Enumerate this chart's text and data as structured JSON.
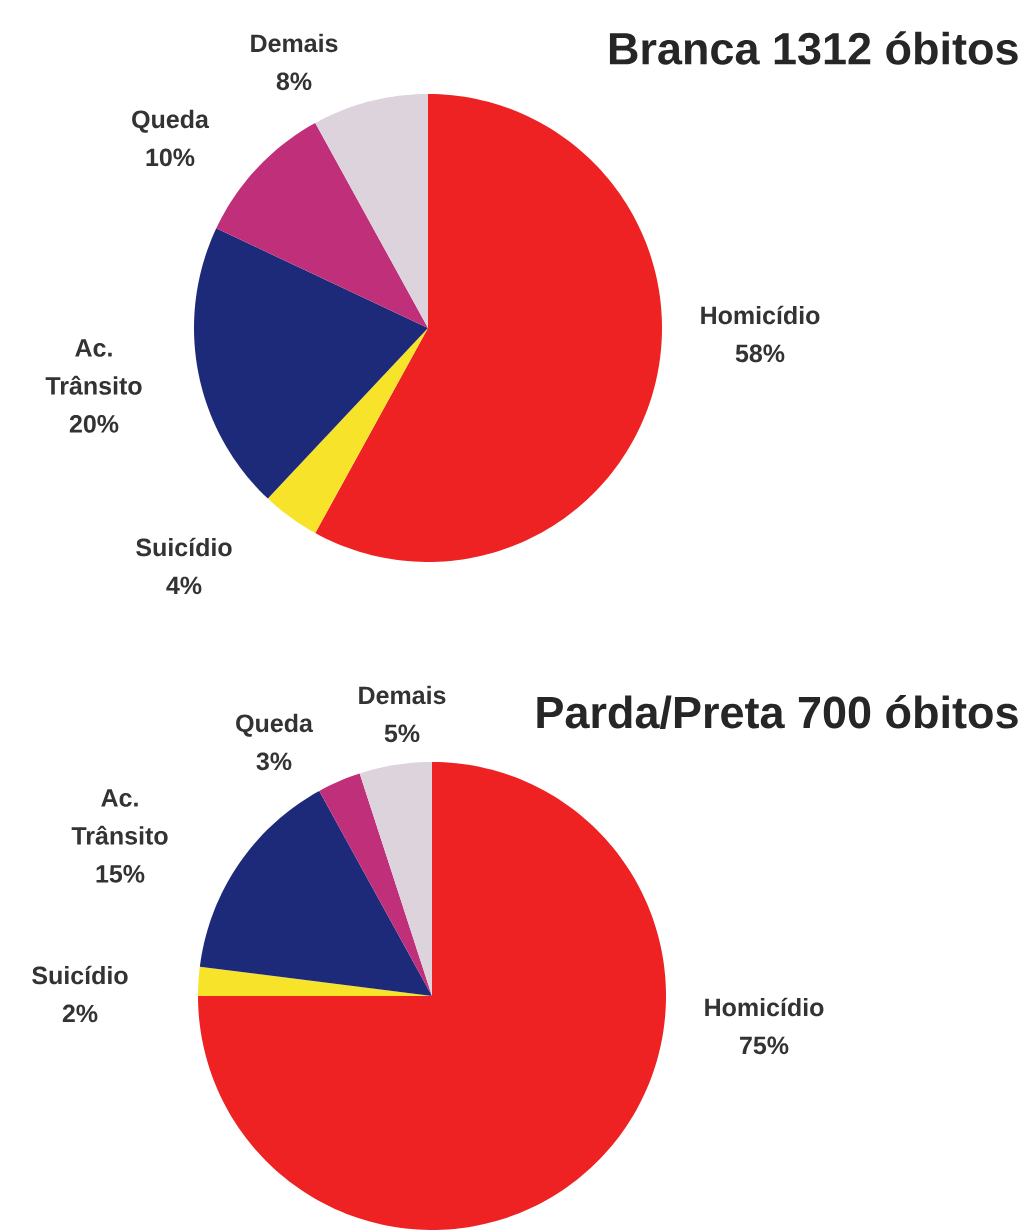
{
  "chart_data": [
    {
      "type": "pie",
      "title": "Branca 1312 óbitos",
      "categories": [
        "Homicídio",
        "Suicídio",
        "Ac. Trânsito",
        "Queda",
        "Demais"
      ],
      "values": [
        58,
        4,
        20,
        10,
        8
      ],
      "value_labels": [
        "58%",
        "4%",
        "20%",
        "10%",
        "8%"
      ],
      "colors": [
        "#ee2222",
        "#f7e42a",
        "#1d2a7a",
        "#c02f7a",
        "#dcd3dc"
      ]
    },
    {
      "type": "pie",
      "title": "Parda/Preta 700 óbitos",
      "categories": [
        "Homicídio",
        "Suicídio",
        "Ac. Trânsito",
        "Queda",
        "Demais"
      ],
      "values": [
        75,
        2,
        15,
        3,
        5
      ],
      "value_labels": [
        "75%",
        "2%",
        "15%",
        "3%",
        "5%"
      ],
      "colors": [
        "#ee2222",
        "#f7e42a",
        "#1d2a7a",
        "#c02f7a",
        "#dcd3dc"
      ]
    }
  ]
}
